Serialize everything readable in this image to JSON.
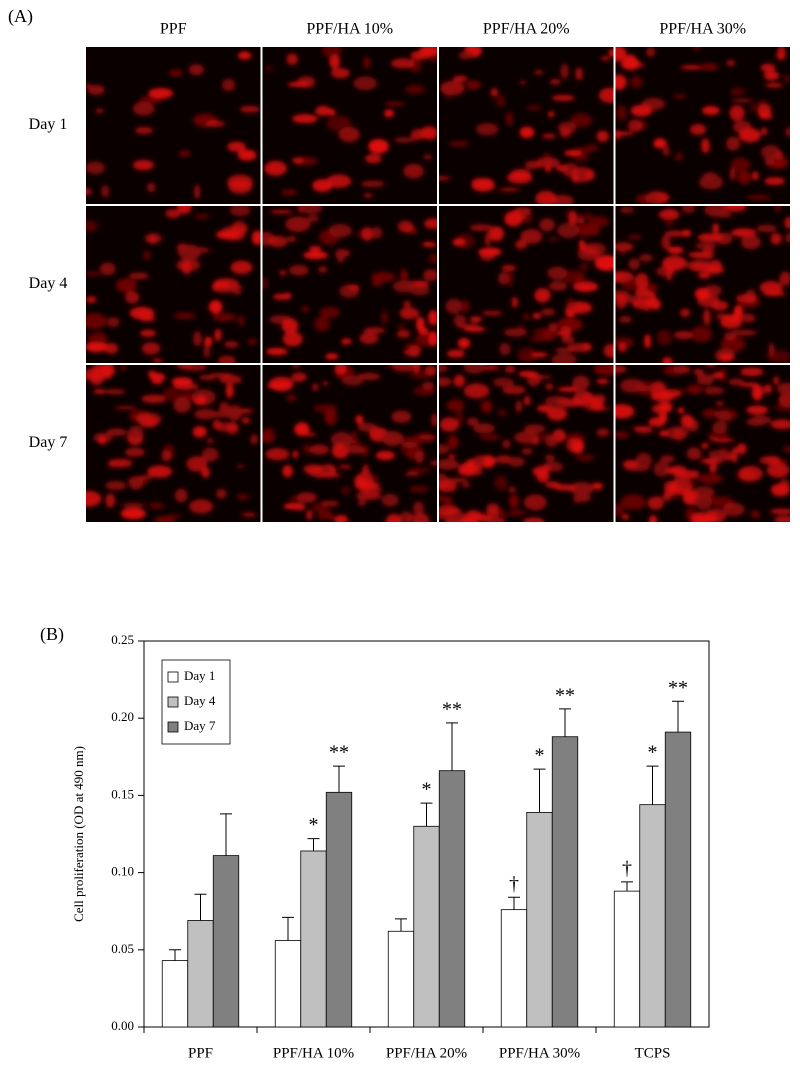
{
  "panel_a": {
    "label": "(A)",
    "columns": [
      "PPF",
      "PPF/HA 10%",
      "PPF/HA 20%",
      "PPF/HA 30%"
    ],
    "rows": [
      "Day 1",
      "Day 4",
      "Day 7"
    ]
  },
  "chart_data": {
    "type": "bar",
    "label": "(B)",
    "y_label": "Cell proliferation (OD at 490 nm)",
    "categories": [
      "PPF",
      "PPF/HA 10%",
      "PPF/HA 20%",
      "PPF/HA 30%",
      "TCPS"
    ],
    "series": [
      {
        "name": "Day 1",
        "color": "#ffffff",
        "values": [
          0.043,
          0.056,
          0.062,
          0.076,
          0.088
        ],
        "errors": [
          0.007,
          0.015,
          0.008,
          0.008,
          0.006
        ],
        "annotations": [
          null,
          null,
          null,
          "†",
          "†"
        ]
      },
      {
        "name": "Day 4",
        "color": "#c0c0c0",
        "values": [
          0.069,
          0.114,
          0.13,
          0.139,
          0.144
        ],
        "errors": [
          0.017,
          0.008,
          0.015,
          0.028,
          0.025
        ],
        "annotations": [
          null,
          "*",
          "*",
          "*",
          "*"
        ]
      },
      {
        "name": "Day 7",
        "color": "#808080",
        "values": [
          0.111,
          0.152,
          0.166,
          0.188,
          0.191
        ],
        "errors": [
          0.027,
          0.017,
          0.031,
          0.018,
          0.02
        ],
        "annotations": [
          null,
          "**",
          "**",
          "**",
          "**"
        ]
      }
    ],
    "ylim": [
      0,
      0.25
    ],
    "yticks": [
      {
        "value": 0,
        "label": "0.00"
      },
      0.05,
      {
        "value": 0.1,
        "label": "0.10"
      },
      0.15,
      {
        "value": 0.2,
        "label": "0.20"
      },
      0.25
    ],
    "legend": "top-left"
  }
}
